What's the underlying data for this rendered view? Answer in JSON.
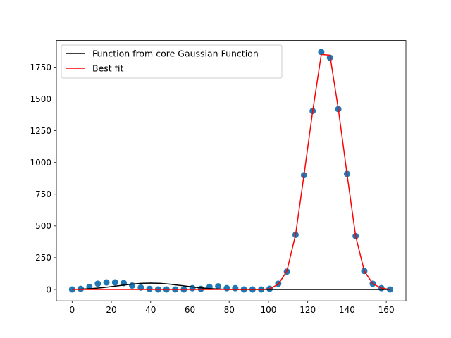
{
  "chart_data": {
    "type": "scatter",
    "title": "",
    "xlabel": "",
    "ylabel": "",
    "xlim": [
      -8,
      170
    ],
    "ylim": [
      -90,
      1960
    ],
    "xticks": [
      0,
      20,
      40,
      60,
      80,
      100,
      120,
      140,
      160
    ],
    "yticks": [
      0,
      250,
      500,
      750,
      1000,
      1250,
      1500,
      1750
    ],
    "grid": false,
    "legend_position": "upper-left",
    "scatter": {
      "color": "#1f77b4",
      "x": [
        0,
        4.4,
        8.8,
        13.1,
        17.5,
        21.9,
        26.3,
        30.6,
        35,
        39.4,
        43.8,
        48.1,
        52.5,
        56.9,
        61.3,
        65.6,
        70,
        74.4,
        78.8,
        83.1,
        87.5,
        91.9,
        96.3,
        100.6,
        105,
        109.4,
        113.8,
        118.1,
        122.5,
        126.9,
        131.3,
        135.6,
        140,
        144.4,
        148.8,
        153.1,
        157.5,
        161.9
      ],
      "y": [
        0,
        5,
        20,
        45,
        55,
        55,
        50,
        30,
        15,
        5,
        0,
        0,
        0,
        0,
        10,
        5,
        20,
        25,
        10,
        10,
        0,
        0,
        0,
        5,
        45,
        140,
        430,
        900,
        1405,
        1870,
        1825,
        1420,
        910,
        420,
        145,
        45,
        10,
        0
      ]
    },
    "series": [
      {
        "name": "Function from core Gaussian Function",
        "color": "#000000",
        "x": [
          0,
          5,
          10,
          15,
          20,
          25,
          30,
          35,
          40,
          45,
          50,
          55,
          60,
          65,
          70,
          75,
          80,
          85,
          90,
          95,
          100,
          110,
          120,
          130,
          140,
          150,
          162
        ],
        "y": [
          0.7,
          2.5,
          6.5,
          13.3,
          22.2,
          31.7,
          40.8,
          47.5,
          50,
          47.5,
          40.8,
          31.7,
          22.2,
          13.3,
          6.5,
          2.5,
          0.7,
          0,
          0,
          0,
          0,
          0,
          0,
          0,
          0,
          0,
          0
        ]
      },
      {
        "name": "Best fit",
        "color": "#ff0000",
        "x": [
          0,
          4.4,
          8.8,
          13.1,
          17.5,
          21.9,
          26.3,
          30.6,
          35,
          39.4,
          43.8,
          48.1,
          52.5,
          56.9,
          61.3,
          65.6,
          70,
          74.4,
          78.8,
          83.1,
          87.5,
          91.9,
          96.3,
          100.6,
          105,
          109.4,
          113.8,
          118.1,
          122.5,
          126.9,
          131.3,
          135.6,
          140,
          144.4,
          148.8,
          153.1,
          157.5,
          161.9
        ],
        "y": [
          0,
          0,
          0,
          0,
          0,
          0,
          0,
          0,
          0,
          0,
          0,
          0,
          0,
          0,
          0,
          0,
          0,
          0,
          0,
          0,
          0,
          0,
          0,
          5,
          40,
          145,
          430,
          900,
          1400,
          1850,
          1845,
          1420,
          910,
          420,
          145,
          45,
          10,
          0
        ]
      }
    ]
  }
}
